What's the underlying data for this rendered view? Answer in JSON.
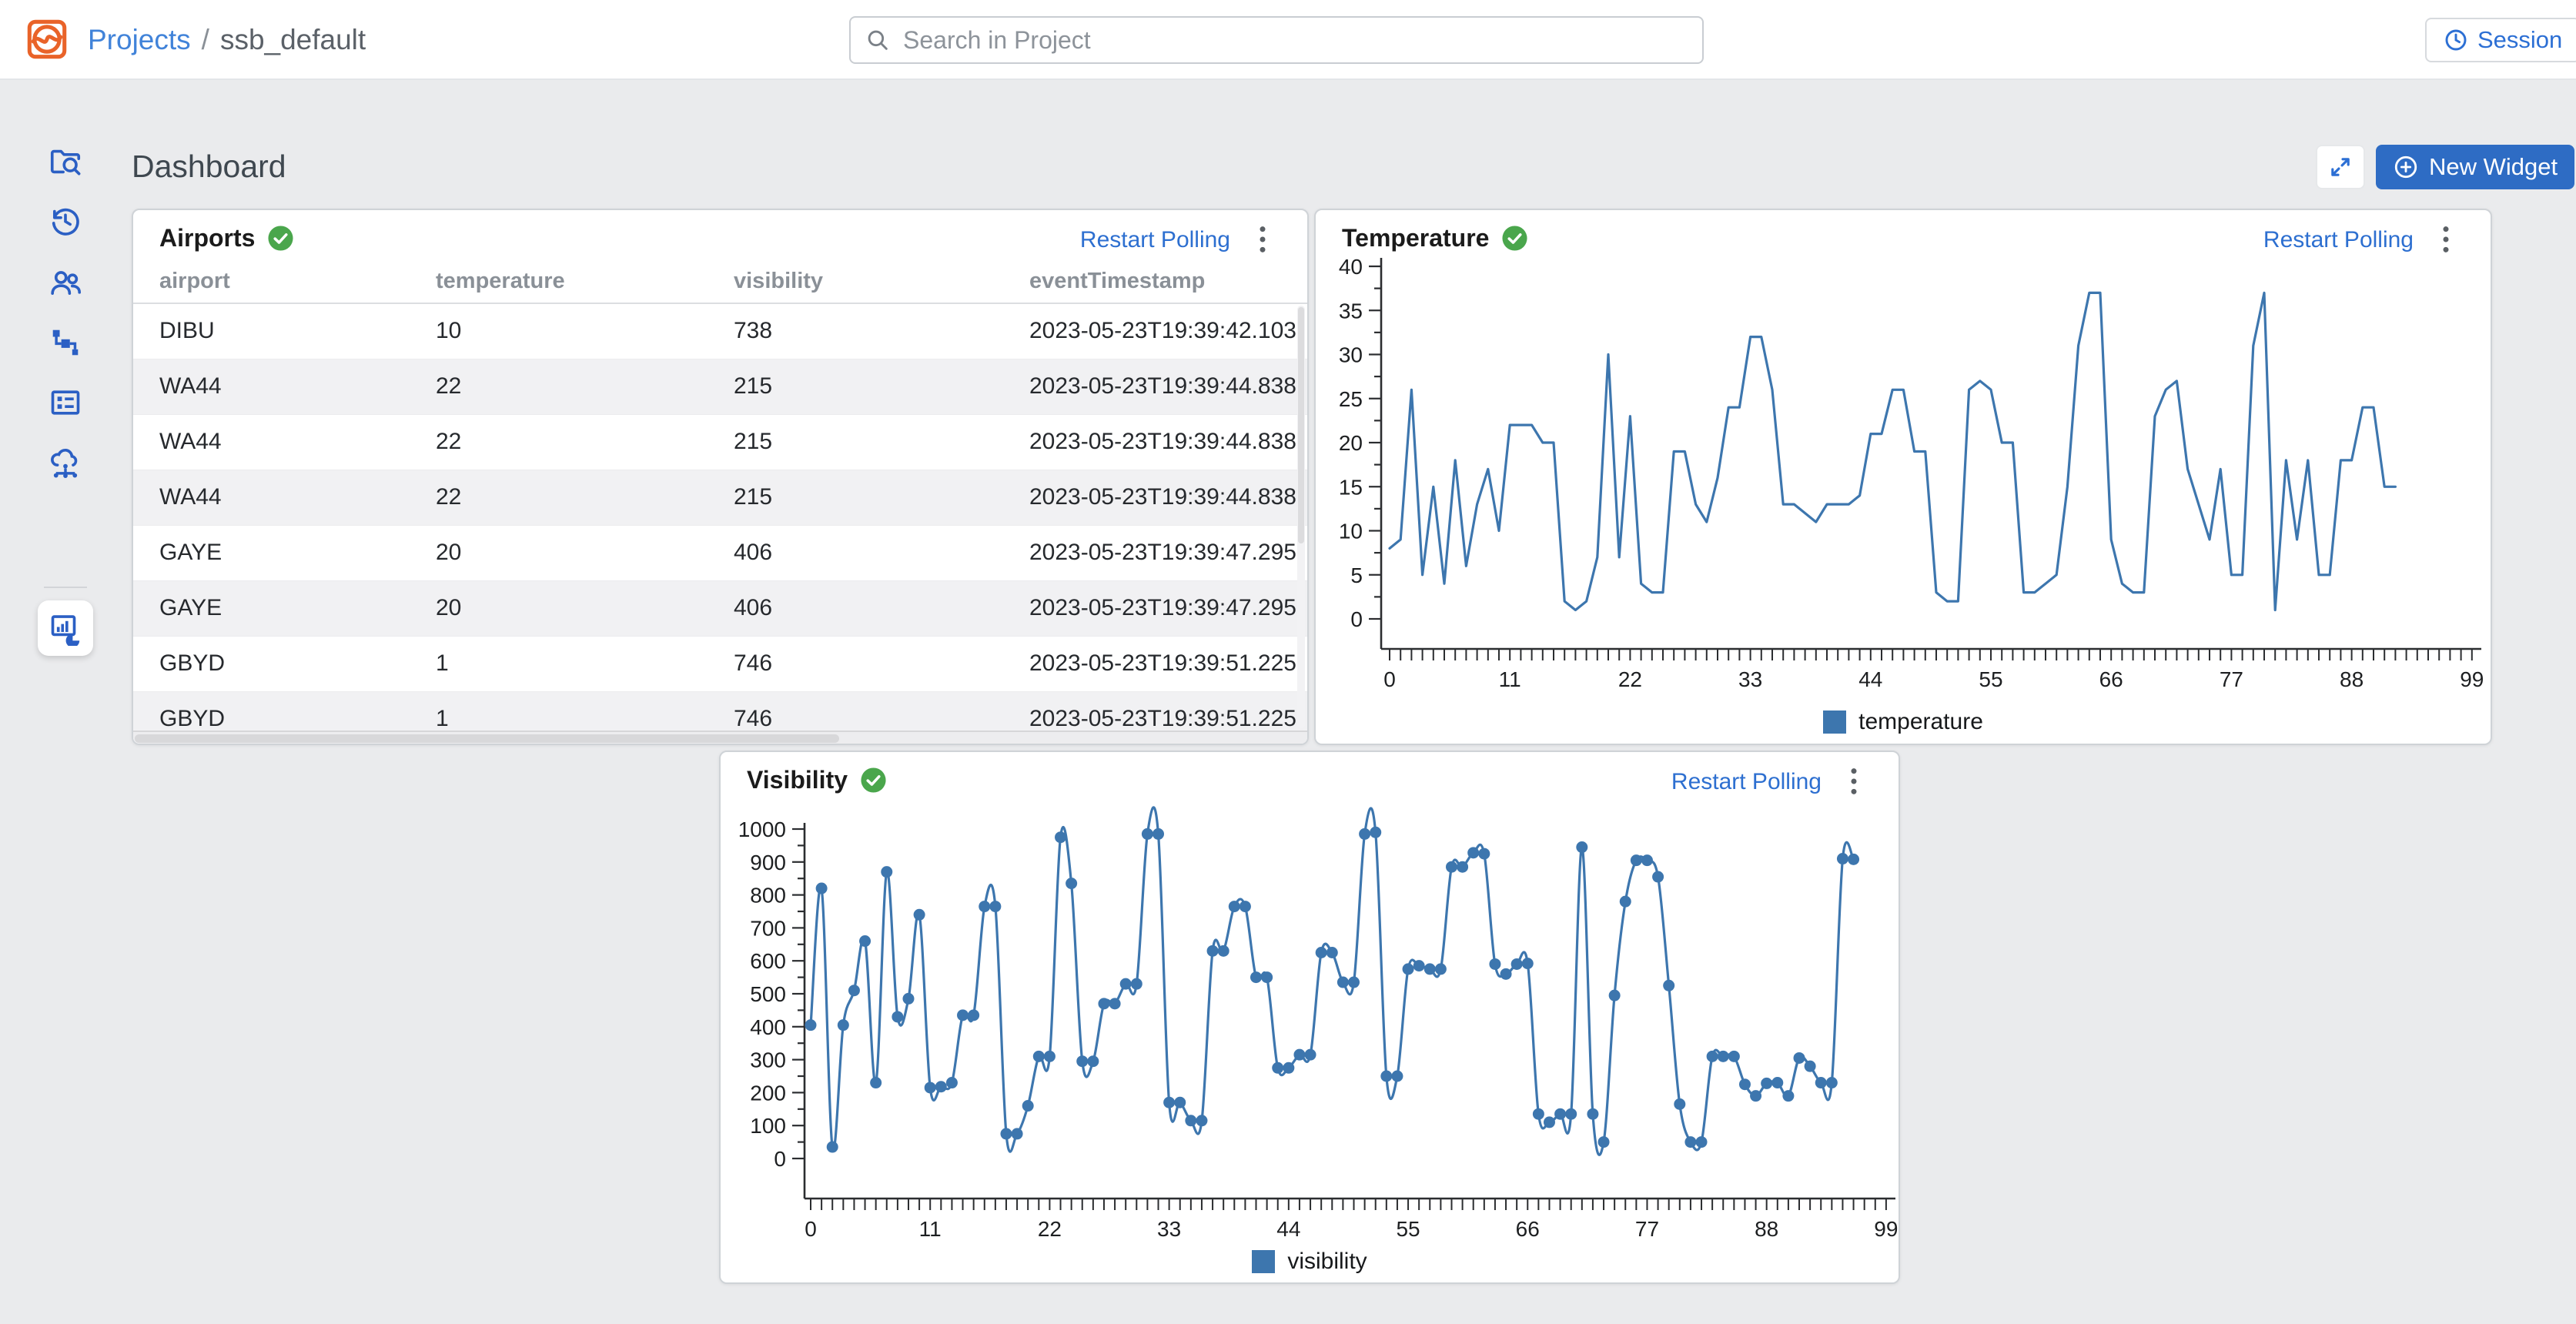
{
  "header": {
    "logo_icon": "ssb-logo",
    "breadcrumb": {
      "root": "Projects",
      "separator": "/",
      "current": "ssb_default"
    },
    "search": {
      "placeholder": "Search in Project",
      "value": ""
    },
    "session_button": {
      "label": "Session",
      "icon": "clock-icon"
    }
  },
  "sidebar": {
    "items": [
      {
        "icon": "project-explorer-icon",
        "active": false
      },
      {
        "icon": "history-icon",
        "active": false
      },
      {
        "icon": "users-icon",
        "active": false
      },
      {
        "icon": "data-flow-icon",
        "active": false
      },
      {
        "icon": "forms-icon",
        "active": false
      },
      {
        "icon": "cloud-cluster-icon",
        "active": false
      },
      {
        "icon": "monitoring-icon",
        "active": true
      }
    ]
  },
  "page": {
    "title": "Dashboard",
    "expand_button_icon": "expand-icon",
    "new_widget_button": {
      "label": "New Widget",
      "icon": "plus-circle-icon"
    }
  },
  "colors": {
    "accent_blue": "#2e6cc4",
    "link_blue": "#2d6fd0",
    "breadcrumb_blue": "#4183d9",
    "sidebar_icon_blue": "#2b5fc4",
    "logo_orange": "#e96329",
    "status_green": "#4aa64c",
    "chart_line_blue": "#3d76ae",
    "page_background": "#eaebed"
  },
  "widgets": {
    "airports": {
      "title": "Airports",
      "status_icon": "check-circle-icon",
      "restart_polling": "Restart Polling",
      "menu_icon": "kebab-icon",
      "columns": [
        "airport",
        "temperature",
        "visibility",
        "eventTimestamp"
      ],
      "rows": [
        [
          "DIBU",
          "10",
          "738",
          "2023-05-23T19:39:42.103"
        ],
        [
          "WA44",
          "22",
          "215",
          "2023-05-23T19:39:44.838"
        ],
        [
          "WA44",
          "22",
          "215",
          "2023-05-23T19:39:44.838"
        ],
        [
          "WA44",
          "22",
          "215",
          "2023-05-23T19:39:44.838"
        ],
        [
          "GAYE",
          "20",
          "406",
          "2023-05-23T19:39:47.295"
        ],
        [
          "GAYE",
          "20",
          "406",
          "2023-05-23T19:39:47.295"
        ],
        [
          "GBYD",
          "1",
          "746",
          "2023-05-23T19:39:51.225"
        ],
        [
          "GBYD",
          "1",
          "746",
          "2023-05-23T19:39:51.225"
        ]
      ]
    },
    "temperature": {
      "title": "Temperature",
      "status_icon": "check-circle-icon",
      "restart_polling": "Restart Polling",
      "menu_icon": "kebab-icon",
      "legend": "temperature"
    },
    "visibility": {
      "title": "Visibility",
      "status_icon": "check-circle-icon",
      "restart_polling": "Restart Polling",
      "menu_icon": "kebab-icon",
      "legend": "visibility"
    }
  },
  "chart_data": [
    {
      "type": "line",
      "title": "Temperature",
      "xlabel": "",
      "ylabel": "",
      "x_range": [
        0,
        99
      ],
      "ylim": [
        0,
        40
      ],
      "y_tick_step": 5,
      "y_minor_step": 2.5,
      "y_tick_labels": [
        "0",
        "5",
        "10",
        "15",
        "20",
        "25",
        "30",
        "35",
        "40"
      ],
      "x_tick_labels": [
        "0",
        "11",
        "22",
        "33",
        "44",
        "55",
        "66",
        "77",
        "88",
        "99"
      ],
      "grid": false,
      "legend_position": "bottom",
      "line_color": "#3d76ae",
      "markers": false,
      "smooth": false,
      "series": [
        {
          "name": "temperature",
          "values": [
            8,
            9,
            26,
            5,
            15,
            4,
            18,
            6,
            13,
            17,
            10,
            22,
            22,
            22,
            20,
            20,
            2,
            1,
            2,
            7,
            30,
            7,
            23,
            4,
            3,
            3,
            19,
            19,
            13,
            11,
            16,
            24,
            24,
            32,
            32,
            26,
            13,
            13,
            12,
            11,
            13,
            13,
            13,
            14,
            21,
            21,
            26,
            26,
            19,
            19,
            3,
            2,
            2,
            26,
            27,
            26,
            20,
            20,
            3,
            3,
            4,
            5,
            15,
            31,
            37,
            37,
            9,
            4,
            3,
            3,
            23,
            26,
            27,
            17,
            13,
            9,
            17,
            5,
            5,
            31,
            37,
            1,
            18,
            9,
            18,
            5,
            5,
            18,
            18,
            24,
            24,
            15,
            15
          ]
        }
      ]
    },
    {
      "type": "line",
      "title": "Visibility",
      "xlabel": "",
      "ylabel": "",
      "x_range": [
        0,
        99
      ],
      "ylim": [
        0,
        1000
      ],
      "y_tick_step": 100,
      "y_minor_step": 50,
      "y_tick_labels": [
        "0",
        "100",
        "200",
        "300",
        "400",
        "500",
        "600",
        "700",
        "800",
        "900",
        "1000"
      ],
      "x_tick_labels": [
        "0",
        "11",
        "22",
        "33",
        "44",
        "55",
        "66",
        "77",
        "88",
        "99"
      ],
      "grid": false,
      "legend_position": "bottom",
      "line_color": "#3d76ae",
      "markers": true,
      "smooth": true,
      "series": [
        {
          "name": "visibility",
          "values": [
            405,
            820,
            35,
            405,
            510,
            660,
            230,
            870,
            430,
            485,
            740,
            215,
            218,
            230,
            435,
            435,
            765,
            765,
            75,
            75,
            160,
            310,
            310,
            975,
            835,
            295,
            295,
            470,
            470,
            530,
            530,
            985,
            985,
            170,
            170,
            115,
            115,
            630,
            630,
            765,
            765,
            550,
            550,
            275,
            275,
            315,
            315,
            625,
            625,
            535,
            535,
            985,
            990,
            250,
            250,
            575,
            585,
            575,
            575,
            885,
            885,
            928,
            925,
            590,
            560,
            590,
            592,
            135,
            110,
            135,
            135,
            945,
            135,
            50,
            495,
            780,
            905,
            905,
            855,
            525,
            165,
            50,
            50,
            310,
            310,
            310,
            225,
            190,
            228,
            230,
            190,
            305,
            280,
            230,
            230,
            910,
            908
          ]
        }
      ]
    }
  ]
}
